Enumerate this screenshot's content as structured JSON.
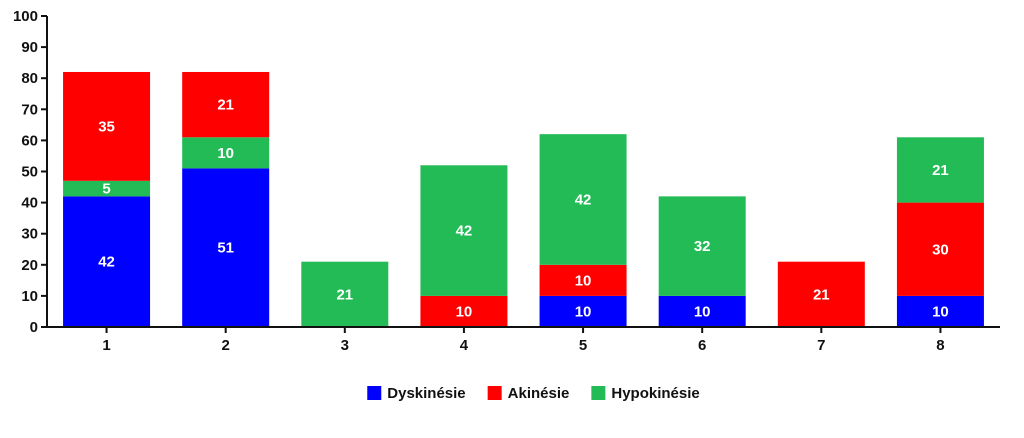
{
  "chart_data": {
    "type": "bar",
    "stacked": true,
    "categories": [
      "1",
      "2",
      "3",
      "4",
      "5",
      "6",
      "7",
      "8"
    ],
    "stack_order_bottom_to_top": [
      "Dyskinésie",
      "Hypokinésie",
      "Akinésie"
    ],
    "series": [
      {
        "name": "Dyskinésie",
        "color": "#0000ff",
        "values": [
          42,
          51,
          null,
          null,
          10,
          10,
          null,
          10
        ]
      },
      {
        "name": "Akinésie",
        "color": "#ff0000",
        "values": [
          35,
          21,
          null,
          10,
          10,
          null,
          21,
          30
        ]
      },
      {
        "name": "Hypokinésie",
        "color": "#22bb55",
        "values": [
          5,
          10,
          21,
          42,
          42,
          32,
          null,
          21
        ]
      }
    ],
    "bar_stacks": [
      [
        {
          "series": "Dyskinésie",
          "value": 42
        },
        {
          "series": "Hypokinésie",
          "value": 5
        },
        {
          "series": "Akinésie",
          "value": 35
        }
      ],
      [
        {
          "series": "Dyskinésie",
          "value": 51
        },
        {
          "series": "Hypokinésie",
          "value": 10
        },
        {
          "series": "Akinésie",
          "value": 21
        }
      ],
      [
        {
          "series": "Hypokinésie",
          "value": 21
        }
      ],
      [
        {
          "series": "Akinésie",
          "value": 10
        },
        {
          "series": "Hypokinésie",
          "value": 42
        }
      ],
      [
        {
          "series": "Dyskinésie",
          "value": 10
        },
        {
          "series": "Akinésie",
          "value": 10
        },
        {
          "series": "Hypokinésie",
          "value": 42
        }
      ],
      [
        {
          "series": "Dyskinésie",
          "value": 10
        },
        {
          "series": "Hypokinésie",
          "value": 32
        }
      ],
      [
        {
          "series": "Akinésie",
          "value": 21
        }
      ],
      [
        {
          "series": "Dyskinésie",
          "value": 10
        },
        {
          "series": "Akinésie",
          "value": 30
        },
        {
          "series": "Hypokinésie",
          "value": 21
        }
      ]
    ],
    "ylim": [
      0,
      100
    ],
    "yticks": [
      0,
      10,
      20,
      30,
      40,
      50,
      60,
      70,
      80,
      90,
      100
    ],
    "grid": false,
    "legend": [
      "Dyskinésie",
      "Akinésie",
      "Hypokinésie"
    ],
    "legend_position": "bottom-center",
    "title": "",
    "xlabel": "",
    "ylabel": ""
  }
}
